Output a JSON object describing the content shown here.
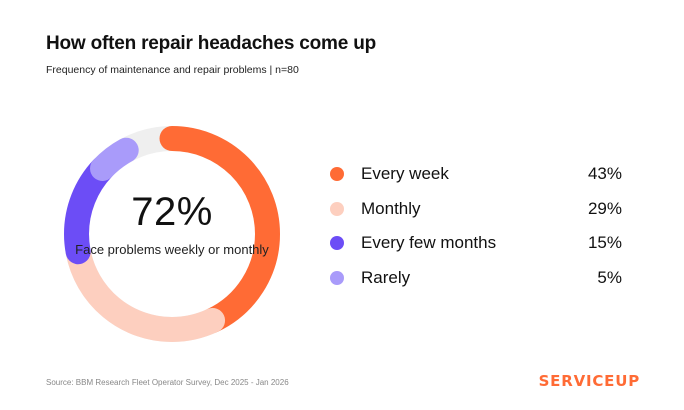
{
  "header": {
    "title": "How often repair headaches come up",
    "subtitle": "Frequency of maintenance and repair problems | n=80"
  },
  "center": {
    "value": "72%",
    "caption": "Face problems weekly or monthly"
  },
  "legend": [
    {
      "label": "Every week",
      "value_text": "43%",
      "color": "#FF6B35"
    },
    {
      "label": "Monthly",
      "value_text": "29%",
      "color": "#FDCFBF"
    },
    {
      "label": "Every few months",
      "value_text": "15%",
      "color": "#6C4DF6"
    },
    {
      "label": "Rarely",
      "value_text": "5%",
      "color": "#A99BFA"
    }
  ],
  "chart_data": {
    "type": "pie",
    "title": "How often repair headaches come up",
    "subtitle": "Frequency of maintenance and repair problems | n=80",
    "categories": [
      "Every week",
      "Monthly",
      "Every few months",
      "Rarely"
    ],
    "values": [
      43,
      29,
      15,
      5
    ],
    "colors": [
      "#FF6B35",
      "#FDCFBF",
      "#6C4DF6",
      "#A99BFA"
    ],
    "remainder_color": "#EFEFEF",
    "donut": true,
    "center_label": "72%",
    "legend_position": "right"
  },
  "footer": {
    "source": "Source: BBM Research Fleet Operator Survey, Dec 2025 - Jan 2026",
    "brand": "SERVICEUP",
    "brand_color": "#FF6B35"
  }
}
